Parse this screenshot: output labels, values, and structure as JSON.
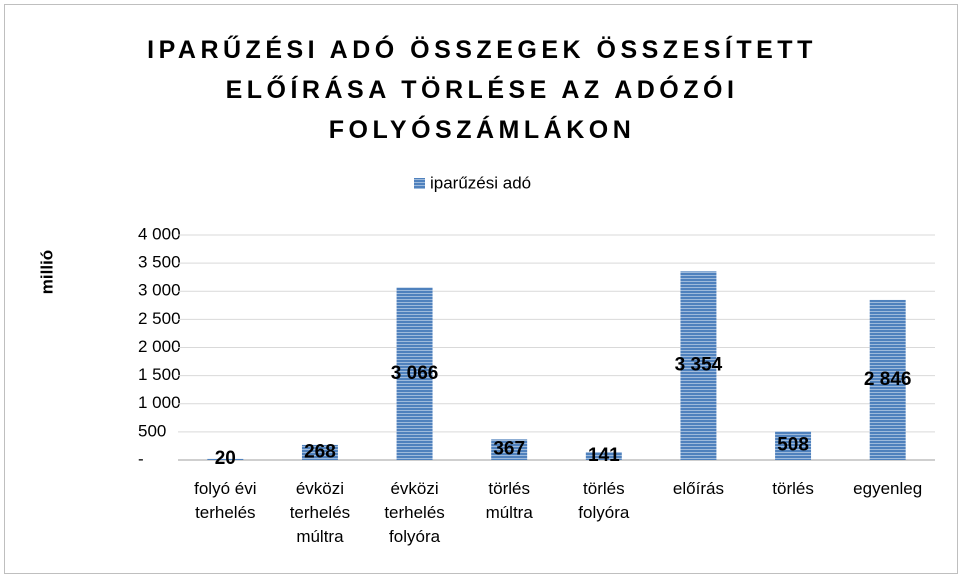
{
  "chart_data": {
    "type": "bar",
    "title": "IPARŰZÉSI ADÓ ÖSSZEGEK ÖSSZESÍTETT ELŐÍRÁSA TÖRLÉSE AZ ADÓZÓI FOLYÓSZÁMLÁKON",
    "y_label": "millió",
    "categories": [
      "folyó évi terhelés",
      "évközi terhelés múltra",
      "évközi terhelés folyóra",
      "törlés múltra",
      "törlés folyóra",
      "előírás",
      "törlés",
      "egyenleg"
    ],
    "series": [
      {
        "name": "iparűzési adó",
        "color": "#4f81bd",
        "values": [
          20,
          268,
          3066,
          367,
          141,
          3354,
          508,
          2846
        ],
        "value_labels": [
          "20",
          "268",
          "3 066",
          "367",
          "141",
          "3 354",
          "508",
          "2 846"
        ]
      }
    ],
    "ylim": [
      0,
      4000
    ],
    "yticks": [
      {
        "value": 0,
        "label": "-"
      },
      500,
      {
        "value": 1000,
        "label": "1 000"
      },
      {
        "value": 1500,
        "label": "1 500"
      },
      {
        "value": 2000,
        "label": "2 000"
      },
      {
        "value": 2500,
        "label": "2 500"
      },
      {
        "value": 3000,
        "label": "3 000"
      },
      {
        "value": 3500,
        "label": "3 500"
      },
      {
        "value": 4000,
        "label": "4 000"
      }
    ],
    "grid": true,
    "legend": "top"
  }
}
